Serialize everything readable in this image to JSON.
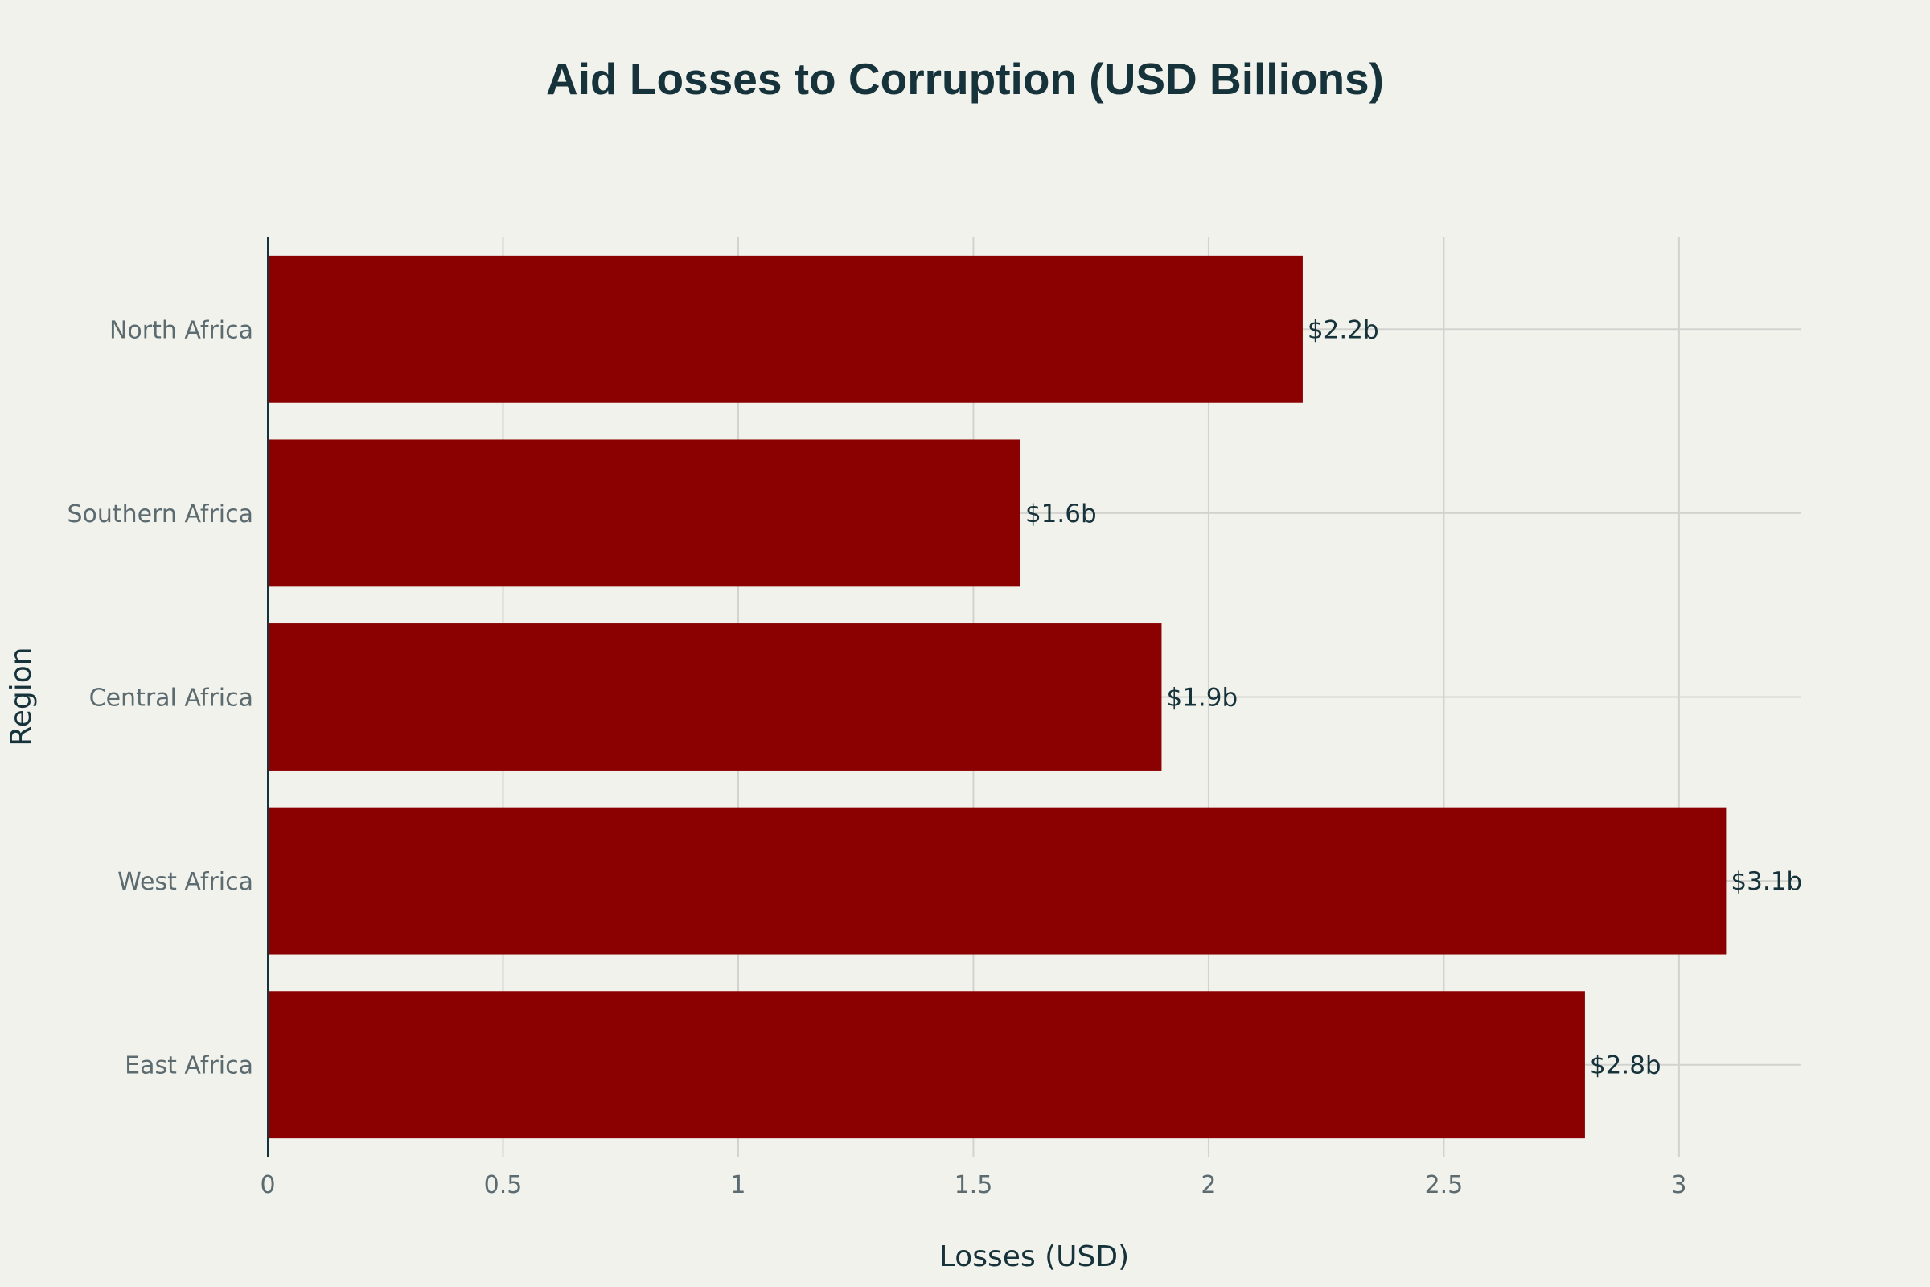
{
  "chart_data": {
    "type": "bar",
    "orientation": "horizontal",
    "title": "Aid Losses to Corruption (USD Billions)",
    "xlabel": "Losses (USD)",
    "ylabel": "Region",
    "categories": [
      "East Africa",
      "West Africa",
      "Central Africa",
      "Southern Africa",
      "North Africa"
    ],
    "values": [
      2.8,
      3.1,
      1.9,
      1.6,
      2.2
    ],
    "data_labels": [
      "$2.8b",
      "$3.1b",
      "$1.9b",
      "$1.6b",
      "$2.2b"
    ],
    "xlim": [
      0,
      3.26
    ],
    "xticks": [
      0,
      0.5,
      1,
      1.5,
      2,
      2.5,
      3
    ],
    "xtick_labels": [
      "0",
      "0.5",
      "1",
      "1.5",
      "2",
      "2.5",
      "3"
    ],
    "grid": true,
    "legend": "none",
    "colors": {
      "bar": "#8b0000",
      "background": "#f2f2ed",
      "title": "#16323a",
      "tick": "#5b6b70",
      "grid": "#d2d3cf"
    }
  }
}
